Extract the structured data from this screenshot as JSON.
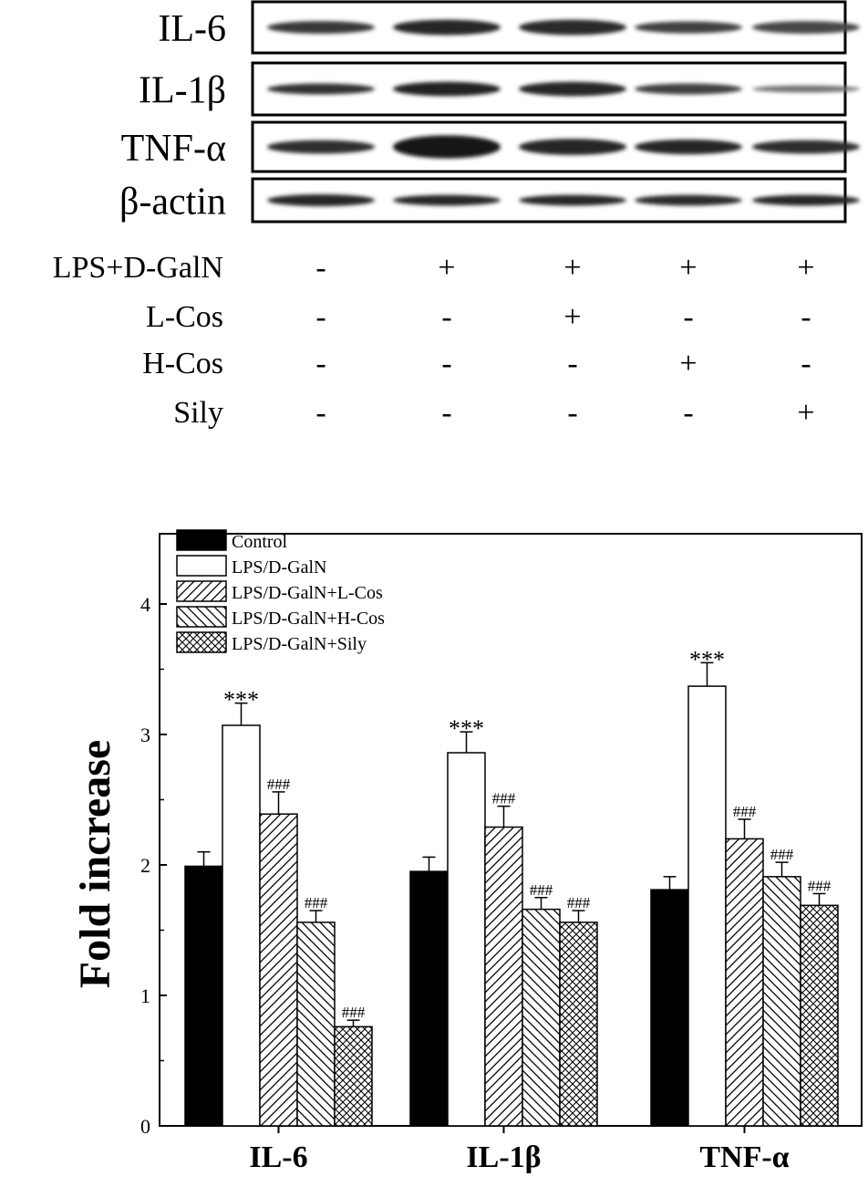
{
  "blot": {
    "rows": [
      {
        "label": "IL-6",
        "intensities": [
          0.78,
          0.9,
          0.86,
          0.74,
          0.7
        ],
        "thickness": [
          0.45,
          0.55,
          0.55,
          0.42,
          0.45
        ]
      },
      {
        "label": "IL-1β",
        "intensities": [
          0.82,
          0.92,
          0.9,
          0.75,
          0.45
        ],
        "thickness": [
          0.38,
          0.5,
          0.5,
          0.38,
          0.25
        ]
      },
      {
        "label": "TNF-α",
        "intensities": [
          0.85,
          1.0,
          0.9,
          0.88,
          0.85
        ],
        "thickness": [
          0.5,
          0.85,
          0.6,
          0.55,
          0.5
        ]
      },
      {
        "label": "β-actin",
        "intensities": [
          0.9,
          0.88,
          0.88,
          0.86,
          0.88
        ],
        "thickness": [
          0.5,
          0.45,
          0.45,
          0.45,
          0.45
        ]
      }
    ]
  },
  "treatments": [
    {
      "label": "LPS+D-GalN",
      "signs": [
        "-",
        "+",
        "+",
        "+",
        "+"
      ]
    },
    {
      "label": "L-Cos",
      "signs": [
        "-",
        "-",
        "+",
        "-",
        "-"
      ]
    },
    {
      "label": "H-Cos",
      "signs": [
        "-",
        "-",
        "-",
        "+",
        "-"
      ]
    },
    {
      "label": "Sily",
      "signs": [
        "-",
        "-",
        "-",
        "-",
        "+"
      ]
    }
  ],
  "chart_data": {
    "type": "bar",
    "categories": [
      "IL-6",
      "IL-1β",
      "TNF-α"
    ],
    "ylabel": "Fold increase",
    "xlabel": "",
    "ylim": [
      0,
      4
    ],
    "yticks": [
      0,
      1,
      2,
      3,
      4
    ],
    "legend_position": "top-left",
    "series": [
      {
        "name": "Control",
        "pattern": "solid",
        "values": [
          1.99,
          1.95,
          1.81
        ],
        "errors": [
          0.11,
          0.11,
          0.1
        ],
        "labels": [
          "",
          "",
          ""
        ]
      },
      {
        "name": "LPS/D-GalN",
        "pattern": "white",
        "values": [
          3.07,
          2.86,
          3.37
        ],
        "errors": [
          0.17,
          0.16,
          0.18
        ],
        "labels": [
          "***",
          "***",
          "***"
        ]
      },
      {
        "name": "LPS/D-GalN+L-Cos",
        "pattern": "hatch-forward",
        "values": [
          2.39,
          2.29,
          2.2
        ],
        "errors": [
          0.17,
          0.16,
          0.15
        ],
        "labels": [
          "###",
          "###",
          "###"
        ]
      },
      {
        "name": "LPS/D-GalN+H-Cos",
        "pattern": "hatch-back",
        "values": [
          1.56,
          1.66,
          1.91
        ],
        "errors": [
          0.09,
          0.09,
          0.11
        ],
        "labels": [
          "###",
          "###",
          "###"
        ]
      },
      {
        "name": "LPS/D-GalN+Sily",
        "pattern": "crosshatch",
        "values": [
          0.76,
          1.56,
          1.69
        ],
        "errors": [
          0.05,
          0.09,
          0.09
        ],
        "labels": [
          "###",
          "###",
          "###"
        ]
      }
    ]
  }
}
